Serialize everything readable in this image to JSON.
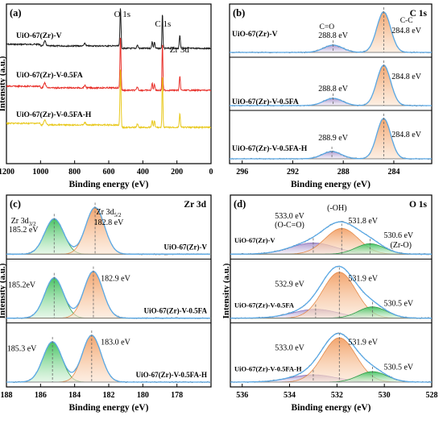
{
  "figure": {
    "panels": [
      {
        "id": "a",
        "tag": "(a)",
        "xlabel": "Binding energy (eV)",
        "ylabel": "Intensity (a.u.)"
      },
      {
        "id": "b",
        "tag": "(b)",
        "xlabel": "Binding energy (eV)",
        "ylabel": ""
      },
      {
        "id": "c",
        "tag": "(c)",
        "xlabel": "Binding energy (eV)",
        "ylabel": "Intensity (a.u.)"
      },
      {
        "id": "d",
        "tag": "(d)",
        "xlabel": "Binding energy (eV)",
        "ylabel": "Intensity (a.u.)"
      }
    ]
  },
  "chart_data": [
    {
      "panel": "a",
      "type": "line",
      "title": "",
      "xlabel": "Binding energy (eV)",
      "ylabel": "Intensity (a.u.)",
      "xlim": [
        1200,
        0
      ],
      "x_reversed": true,
      "xticks": [
        "1200",
        "1000",
        "800",
        "600",
        "400",
        "200",
        "0"
      ],
      "grid": false,
      "peak_labels": [
        "O 1s",
        "C 1s",
        "Zr 3d"
      ],
      "series": [
        {
          "name": "UiO-67(Zr)-V",
          "color": "#1a1a1a"
        },
        {
          "name": "UiO-67(Zr)-V-0.5FA",
          "color": "#e8302a"
        },
        {
          "name": "UiO-67(Zr)-V-0.5FA-H",
          "color": "#e8c81a"
        }
      ]
    },
    {
      "panel": "b",
      "type": "area",
      "title": "C 1s",
      "xlabel": "Binding energy (eV)",
      "ylabel": "",
      "xlim": [
        297,
        281
      ],
      "x_reversed": true,
      "xticks": [
        "296",
        "292",
        "288",
        "284"
      ],
      "grid": false,
      "bond_labels": [
        "C=O",
        "C-C"
      ],
      "spectra": [
        {
          "name": "UiO-67(Zr)-V",
          "peaks": [
            {
              "label": "288.8 eV",
              "center": 288.8
            },
            {
              "label": "284.8 eV",
              "center": 284.8
            }
          ]
        },
        {
          "name": "UiO-67(Zr)-V-0.5FA",
          "peaks": [
            {
              "label": "288.8 eV",
              "center": 288.8
            },
            {
              "label": "284.8 eV",
              "center": 284.8
            }
          ]
        },
        {
          "name": "UiO-67(Zr)-V-0.5FA-H",
          "peaks": [
            {
              "label": "288.9 eV",
              "center": 288.9
            },
            {
              "label": "284.8 eV",
              "center": 284.8
            }
          ]
        }
      ]
    },
    {
      "panel": "c",
      "type": "area",
      "title": "Zr 3d",
      "xlabel": "Binding energy (eV)",
      "ylabel": "Intensity (a.u.)",
      "xlim": [
        188,
        176
      ],
      "x_reversed": true,
      "xticks": [
        "188",
        "186",
        "184",
        "182",
        "180",
        "178"
      ],
      "grid": false,
      "orbital_labels": [
        "Zr 3d",
        "Zr 3d"
      ],
      "orbital_subscripts": [
        "3/2",
        "5/2"
      ],
      "spectra": [
        {
          "name": "UiO-67(Zr)-V",
          "peaks": [
            {
              "label": "185.2 eV",
              "center": 185.2
            },
            {
              "label": "182.8 eV",
              "center": 182.8
            }
          ]
        },
        {
          "name": "UiO-67(Zr)-V-0.5FA",
          "peaks": [
            {
              "label": "185.2eV",
              "center": 185.2
            },
            {
              "label": "182.9 eV",
              "center": 182.9
            }
          ]
        },
        {
          "name": "UiO-67(Zr)-V-0.5FA-H",
          "peaks": [
            {
              "label": "185.3 eV",
              "center": 185.3
            },
            {
              "label": "183.0 eV",
              "center": 183.0
            }
          ]
        }
      ]
    },
    {
      "panel": "d",
      "type": "area",
      "title": "O 1s",
      "xlabel": "Binding energy (eV)",
      "ylabel": "Intensity (a.u.)",
      "xlim": [
        536.5,
        528
      ],
      "x_reversed": true,
      "xticks": [
        "536",
        "534",
        "532",
        "530",
        "528"
      ],
      "grid": false,
      "group_labels": [
        "(O-C=O)",
        "(-OH)",
        "(Zr-O)"
      ],
      "spectra": [
        {
          "name": "UiO-67(Zr)-V",
          "peaks": [
            {
              "label": "533.0 eV",
              "center": 533.0
            },
            {
              "label": "531.8 eV",
              "center": 531.8
            },
            {
              "label": "530.6 eV",
              "center": 530.6
            }
          ]
        },
        {
          "name": "UiO-67(Zr)-V-0.5FA",
          "peaks": [
            {
              "label": "532.9 eV",
              "center": 532.9
            },
            {
              "label": "531.9 eV",
              "center": 531.9
            },
            {
              "label": "530.5 eV",
              "center": 530.5
            }
          ]
        },
        {
          "name": "UiO-67(Zr)-V-0.5FA-H",
          "peaks": [
            {
              "label": "533.0 eV",
              "center": 533.0
            },
            {
              "label": "531.9 eV",
              "center": 531.9
            },
            {
              "label": "530.5 eV",
              "center": 530.5
            }
          ]
        }
      ]
    }
  ]
}
